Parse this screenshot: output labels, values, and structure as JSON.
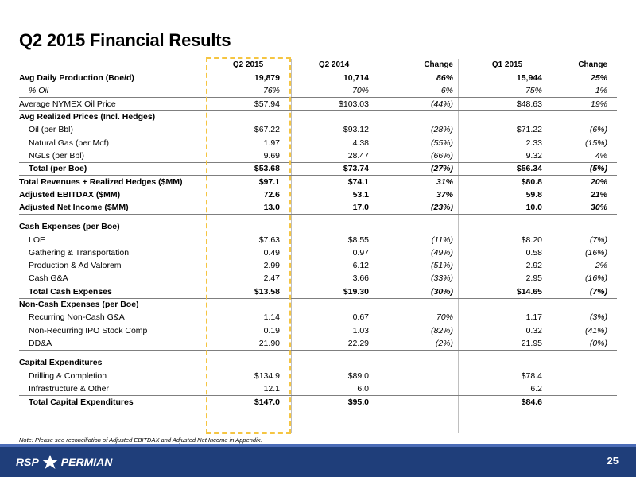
{
  "title": "Q2 2015 Financial Results",
  "columns": [
    "Q2 2015",
    "Q2 2014",
    "Change",
    "Q1 2015",
    "Change"
  ],
  "rows": [
    {
      "label": "Avg Daily Production (Boe/d)",
      "vals": [
        "19,879",
        "10,714",
        "86%",
        "15,944",
        "25%"
      ],
      "style": "bold"
    },
    {
      "label": "% Oil",
      "vals": [
        "76%",
        "70%",
        "6%",
        "75%",
        "1%"
      ],
      "style": "italic indent sep"
    },
    {
      "label": "Average NYMEX Oil Price",
      "vals": [
        "$57.94",
        "$103.03",
        "(44%)",
        "$48.63",
        "19%"
      ],
      "style": "sep"
    },
    {
      "label": "Avg Realized Prices (Incl. Hedges)",
      "vals": [
        "",
        "",
        "",
        "",
        ""
      ],
      "style": "section"
    },
    {
      "label": "Oil (per Bbl)",
      "vals": [
        "$67.22",
        "$93.12",
        "(28%)",
        "$71.22",
        "(6%)"
      ],
      "style": "indent"
    },
    {
      "label": "Natural Gas (per Mcf)",
      "vals": [
        "1.97",
        "4.38",
        "(55%)",
        "2.33",
        "(15%)"
      ],
      "style": "indent"
    },
    {
      "label": "NGLs (per Bbl)",
      "vals": [
        "9.69",
        "28.47",
        "(66%)",
        "9.32",
        "4%"
      ],
      "style": "indent"
    },
    {
      "label": "Total (per Boe)",
      "vals": [
        "$53.68",
        "$73.74",
        "(27%)",
        "$56.34",
        "(5%)"
      ],
      "style": "bold indent topline sep"
    },
    {
      "label": "Total Revenues + Realized Hedges ($MM)",
      "vals": [
        "$97.1",
        "$74.1",
        "31%",
        "$80.8",
        "20%"
      ],
      "style": "bold"
    },
    {
      "label": "Adjusted EBITDAX ($MM)",
      "vals": [
        "72.6",
        "53.1",
        "37%",
        "59.8",
        "21%"
      ],
      "style": "bold"
    },
    {
      "label": "Adjusted Net Income ($MM)",
      "vals": [
        "13.0",
        "17.0",
        "(23%)",
        "10.0",
        "30%"
      ],
      "style": "bold sep"
    },
    {
      "label": "",
      "vals": [
        "",
        "",
        "",
        "",
        ""
      ],
      "style": "spacer"
    },
    {
      "label": "Cash Expenses (per Boe)",
      "vals": [
        "",
        "",
        "",
        "",
        ""
      ],
      "style": "section"
    },
    {
      "label": "LOE",
      "vals": [
        "$7.63",
        "$8.55",
        "(11%)",
        "$8.20",
        "(7%)"
      ],
      "style": "indent"
    },
    {
      "label": "Gathering & Transportation",
      "vals": [
        "0.49",
        "0.97",
        "(49%)",
        "0.58",
        "(16%)"
      ],
      "style": "indent"
    },
    {
      "label": "Production & Ad Valorem",
      "vals": [
        "2.99",
        "6.12",
        "(51%)",
        "2.92",
        "2%"
      ],
      "style": "indent"
    },
    {
      "label": "Cash G&A",
      "vals": [
        "2.47",
        "3.66",
        "(33%)",
        "2.95",
        "(16%)"
      ],
      "style": "indent"
    },
    {
      "label": "Total Cash Expenses",
      "vals": [
        "$13.58",
        "$19.30",
        "(30%)",
        "$14.65",
        "(7%)"
      ],
      "style": "bold indent topline sep"
    },
    {
      "label": "Non-Cash Expenses (per Boe)",
      "vals": [
        "",
        "",
        "",
        "",
        ""
      ],
      "style": "section"
    },
    {
      "label": "Recurring Non-Cash G&A",
      "vals": [
        "1.14",
        "0.67",
        "70%",
        "1.17",
        "(3%)"
      ],
      "style": "indent"
    },
    {
      "label": "Non-Recurring IPO Stock Comp",
      "vals": [
        "0.19",
        "1.03",
        "(82%)",
        "0.32",
        "(41%)"
      ],
      "style": "indent"
    },
    {
      "label": "DD&A",
      "vals": [
        "21.90",
        "22.29",
        "(2%)",
        "21.95",
        "(0%)"
      ],
      "style": "indent sep"
    },
    {
      "label": "",
      "vals": [
        "",
        "",
        "",
        "",
        ""
      ],
      "style": "spacer"
    },
    {
      "label": "Capital Expenditures",
      "vals": [
        "",
        "",
        "",
        "",
        ""
      ],
      "style": "section"
    },
    {
      "label": "Drilling & Completion",
      "vals": [
        "$134.9",
        "$89.0",
        "",
        "$78.4",
        ""
      ],
      "style": "indent"
    },
    {
      "label": "Infrastructure & Other",
      "vals": [
        "12.1",
        "6.0",
        "",
        "6.2",
        ""
      ],
      "style": "indent"
    },
    {
      "label": "Total Capital Expenditures",
      "vals": [
        "$147.0",
        "$95.0",
        "",
        "$84.6",
        ""
      ],
      "style": "bold indent topline"
    }
  ],
  "note": "Note: Please see reconciliation of Adjusted EBITDAX and Adjusted Net Income in Appendix.",
  "footer": {
    "logo_left": "RSP",
    "logo_right": "PERMIAN",
    "page_number": "25"
  },
  "colors": {
    "footer_bg": "#1f3e7a",
    "highlight": "#f5c542"
  }
}
